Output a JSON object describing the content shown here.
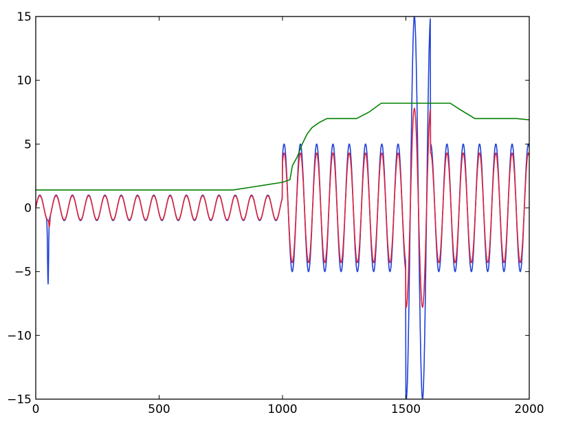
{
  "chart_data": {
    "type": "line",
    "title": "",
    "xlabel": "",
    "ylabel": "",
    "xlim": [
      0,
      2000
    ],
    "ylim": [
      -15,
      15
    ],
    "grid": false,
    "legend": "none",
    "x_ticks": [
      {
        "value": 0,
        "label": "0"
      },
      {
        "value": 500,
        "label": "500"
      },
      {
        "value": 1000,
        "label": "1000"
      },
      {
        "value": 1500,
        "label": "1500"
      },
      {
        "value": 2000,
        "label": "2000"
      }
    ],
    "y_ticks": [
      {
        "value": -15,
        "label": "−15"
      },
      {
        "value": -10,
        "label": "−10"
      },
      {
        "value": -5,
        "label": "−5"
      },
      {
        "value": 0,
        "label": "0"
      },
      {
        "value": 5,
        "label": "5"
      },
      {
        "value": 10,
        "label": "10"
      },
      {
        "value": 15,
        "label": "15"
      }
    ],
    "series": [
      {
        "color": "#1f3fd6",
        "period": 66,
        "segments": [
          {
            "x_start": 0,
            "x_end": 1000,
            "amplitude": 1
          },
          {
            "x_start": 1000,
            "x_end": 1500,
            "amplitude": 5
          },
          {
            "x_start": 1500,
            "x_end": 1600,
            "amplitude": 15
          },
          {
            "x_start": 1600,
            "x_end": 2000,
            "amplitude": 5
          }
        ],
        "spikes": [
          {
            "x": 50,
            "y": -6
          }
        ]
      },
      {
        "color": "#e0233a",
        "period": 66,
        "segments": [
          {
            "x_start": 0,
            "x_end": 1000,
            "amplitude": 0.95
          },
          {
            "x_start": 1000,
            "x_end": 1500,
            "amplitude": 4.3
          },
          {
            "x_start": 1500,
            "x_end": 1600,
            "amplitude": 7.8
          },
          {
            "x_start": 1600,
            "x_end": 2000,
            "amplitude": 4.3
          }
        ],
        "spikes": [
          {
            "x": 55,
            "y": -1.5
          }
        ]
      },
      {
        "color": "#008000",
        "points": [
          [
            0,
            1.4
          ],
          [
            50,
            1.4
          ],
          [
            200,
            1.4
          ],
          [
            500,
            1.4
          ],
          [
            800,
            1.4
          ],
          [
            900,
            1.7
          ],
          [
            1000,
            2.0
          ],
          [
            1030,
            2.2
          ],
          [
            1040,
            3.3
          ],
          [
            1060,
            4.0
          ],
          [
            1080,
            5.0
          ],
          [
            1100,
            5.8
          ],
          [
            1120,
            6.3
          ],
          [
            1150,
            6.7
          ],
          [
            1180,
            7.0
          ],
          [
            1300,
            7.0
          ],
          [
            1350,
            7.5
          ],
          [
            1400,
            8.2
          ],
          [
            1500,
            8.2
          ],
          [
            1580,
            8.2
          ],
          [
            1680,
            8.2
          ],
          [
            1720,
            7.7
          ],
          [
            1780,
            7.0
          ],
          [
            1850,
            7.0
          ],
          [
            1950,
            7.0
          ],
          [
            2000,
            6.9
          ]
        ]
      }
    ]
  }
}
